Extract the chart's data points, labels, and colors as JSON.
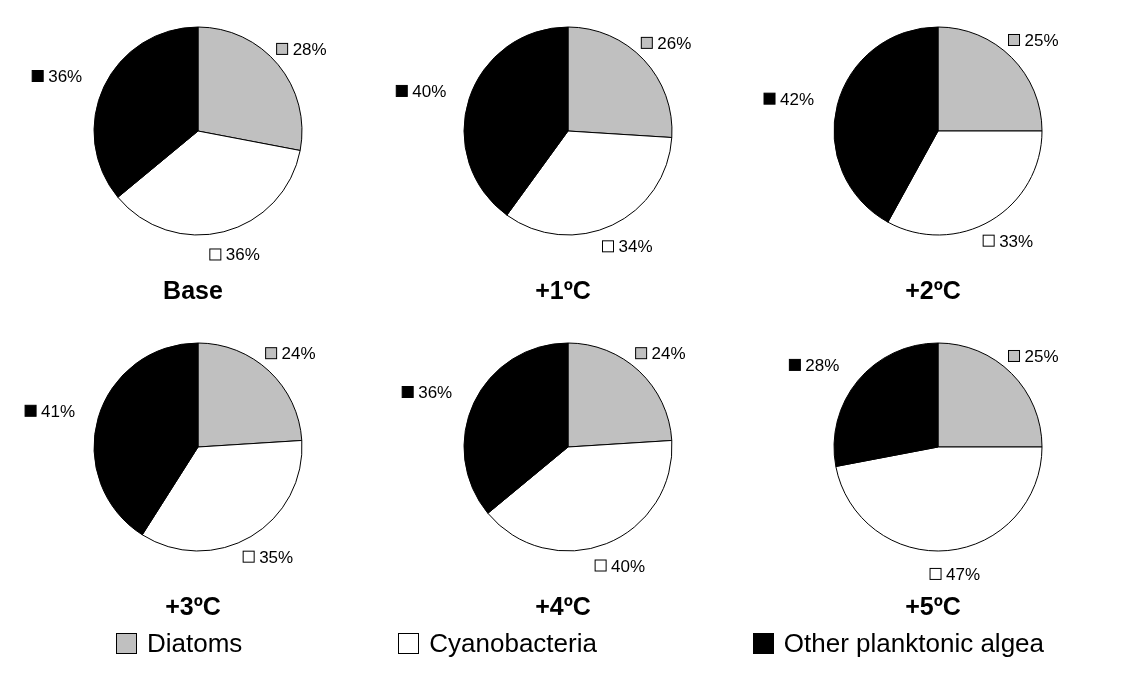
{
  "chart_data": [
    {
      "type": "pie",
      "title": "Base",
      "categories": [
        "Diatoms",
        "Cyanobacteria",
        "Other planktonic algea"
      ],
      "values": [
        28,
        36,
        36
      ],
      "value_labels": [
        "28%",
        "36%",
        "36%"
      ],
      "colors": [
        "#c0c0c0",
        "#ffffff",
        "#000000"
      ],
      "legend": "bottom"
    },
    {
      "type": "pie",
      "title": "+1ºC",
      "values": [
        26,
        34,
        40
      ],
      "value_labels": [
        "26%",
        "34%",
        "40%"
      ],
      "colors": [
        "#c0c0c0",
        "#ffffff",
        "#000000"
      ]
    },
    {
      "type": "pie",
      "title": "+2ºC",
      "values": [
        25,
        33,
        42
      ],
      "value_labels": [
        "25%",
        "33%",
        "42%"
      ],
      "colors": [
        "#c0c0c0",
        "#ffffff",
        "#000000"
      ]
    },
    {
      "type": "pie",
      "title": "+3ºC",
      "values": [
        24,
        35,
        41
      ],
      "value_labels": [
        "24%",
        "35%",
        "41%"
      ],
      "colors": [
        "#c0c0c0",
        "#ffffff",
        "#000000"
      ]
    },
    {
      "type": "pie",
      "title": "+4ºC",
      "values": [
        24,
        40,
        36
      ],
      "value_labels": [
        "24%",
        "40%",
        "36%"
      ],
      "colors": [
        "#c0c0c0",
        "#ffffff",
        "#000000"
      ]
    },
    {
      "type": "pie",
      "title": "+5ºC",
      "values": [
        25,
        47,
        28
      ],
      "value_labels": [
        "25%",
        "47%",
        "28%"
      ],
      "colors": [
        "#c0c0c0",
        "#ffffff",
        "#000000"
      ]
    }
  ]
}
